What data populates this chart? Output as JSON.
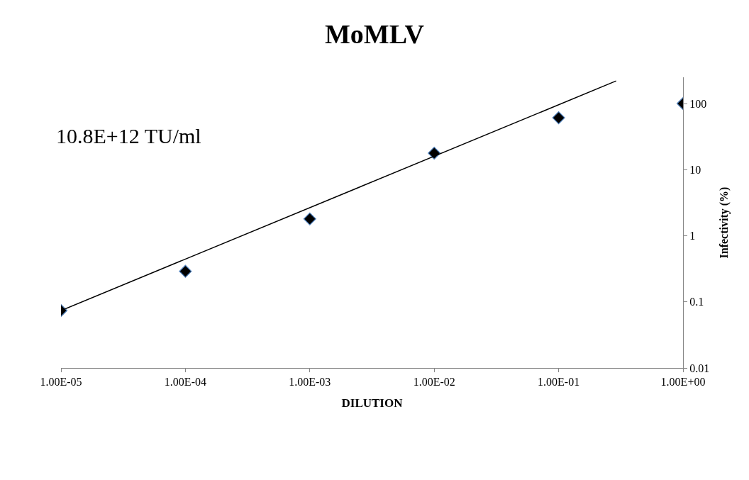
{
  "chart_data": {
    "type": "scatter",
    "title": "MoMLV",
    "xlabel": "DILUTION",
    "ylabel": "Infectivity (%)",
    "log": "xy",
    "grid": false,
    "annotations": [
      "10.8E+12 TU/ml"
    ],
    "series": [
      {
        "marker": "diamond",
        "color": "#000000",
        "x": [
          1e-05,
          0.0001,
          0.001,
          0.01,
          0.1,
          1
        ],
        "values": [
          0.074,
          0.29,
          1.8,
          17.8,
          61,
          100
        ]
      },
      {
        "type": "line",
        "marker": "none",
        "color": "#000000",
        "x": [
          1e-05,
          0.29
        ],
        "values": [
          0.074,
          220
        ]
      }
    ],
    "xlim": [
      1e-05,
      1
    ],
    "xticks": [
      {
        "value": 1e-05,
        "label": "1.00E-05"
      },
      {
        "value": 0.0001,
        "label": "1.00E-04"
      },
      {
        "value": 0.001,
        "label": "1.00E-03"
      },
      {
        "value": 0.01,
        "label": "1.00E-02"
      },
      {
        "value": 0.1,
        "label": "1.00E-01"
      },
      {
        "value": 1,
        "label": "1.00E+00"
      }
    ],
    "ylim": [
      0.01,
      250
    ],
    "yticks": [
      0.01,
      0.1,
      1,
      10,
      100
    ]
  }
}
